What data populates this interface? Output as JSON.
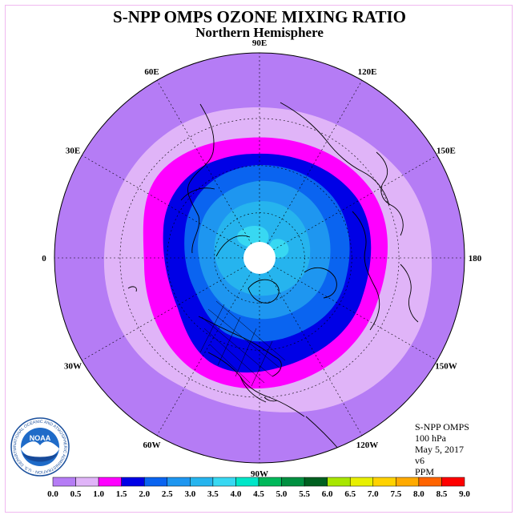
{
  "title": "S-NPP OMPS OZONE MIXING RATIO",
  "subtitle": "Northern Hemisphere",
  "longitude_labels": [
    {
      "text": "90E",
      "lon": 90
    },
    {
      "text": "60E",
      "lon": 60
    },
    {
      "text": "30E",
      "lon": 30
    },
    {
      "text": "0",
      "lon": 0
    },
    {
      "text": "30W",
      "lon": -30
    },
    {
      "text": "60W",
      "lon": -60
    },
    {
      "text": "90W",
      "lon": -90
    },
    {
      "text": "120W",
      "lon": -120
    },
    {
      "text": "150W",
      "lon": -150
    },
    {
      "text": "180",
      "lon": 180
    },
    {
      "text": "150E",
      "lon": 150
    },
    {
      "text": "120E",
      "lon": 120
    }
  ],
  "info": {
    "instrument": "S-NPP OMPS",
    "level": "100 hPa",
    "date": "May 5, 2017",
    "version": "v6",
    "units": "PPM"
  },
  "color_scale": {
    "labels": [
      "0.0",
      "0.5",
      "1.0",
      "1.5",
      "2.0",
      "2.5",
      "3.0",
      "3.5",
      "4.0",
      "4.5",
      "5.0",
      "5.5",
      "6.0",
      "6.5",
      "7.0",
      "7.5",
      "8.0",
      "8.5",
      "9.0"
    ],
    "colors": [
      "#b57cf5",
      "#e0b4f8",
      "#ff00ff",
      "#0000e6",
      "#0a64f0",
      "#1e96f0",
      "#26b4ee",
      "#38d8f2",
      "#00e6c8",
      "#00b85a",
      "#009040",
      "#006020",
      "#a8e600",
      "#e8f000",
      "#ffd200",
      "#ffaa00",
      "#ff6400",
      "#ff0000",
      "#8c5a3c"
    ]
  },
  "chart_data": {
    "type": "heatmap",
    "projection": "north polar stereographic",
    "variable": "ozone mixing ratio",
    "units": "PPM",
    "level": "100 hPa",
    "date": "May 5, 2017",
    "contour_bands": [
      {
        "range": [
          0.0,
          0.5
        ],
        "color": "#b57cf5",
        "region": "outer ring, lowest latitudes"
      },
      {
        "range": [
          0.5,
          1.0
        ],
        "color": "#e0b4f8",
        "region": "mid-latitude ring"
      },
      {
        "range": [
          1.0,
          1.5
        ],
        "color": "#ff00ff",
        "region": "ring around the polar region"
      },
      {
        "range": [
          1.5,
          2.0
        ],
        "color": "#0000e6",
        "region": "high latitudes, strongest over North America and Siberia"
      },
      {
        "range": [
          2.0,
          2.5
        ],
        "color": "#0a64f0",
        "region": "polar region"
      },
      {
        "range": [
          2.5,
          3.0
        ],
        "color": "#1e96f0",
        "region": "polar region"
      },
      {
        "range": [
          3.0,
          3.5
        ],
        "color": "#26b4ee",
        "region": "near pole"
      },
      {
        "range": [
          3.5,
          4.0
        ],
        "color": "#38d8f2",
        "region": "small patches near pole"
      }
    ],
    "no_data": "white disk at the pole"
  },
  "logo": {
    "text": "NOAA",
    "ring_text": "NATIONAL OCEANIC AND ATMOSPHERIC ADMINISTRATION · U.S. DEPARTMENT OF COMMERCE"
  }
}
